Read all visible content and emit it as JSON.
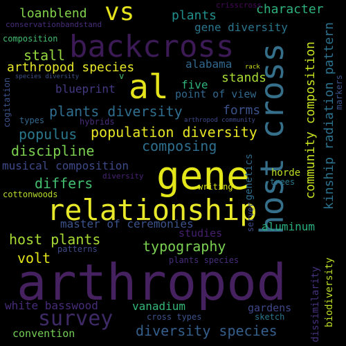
{
  "words": [
    {
      "id": "arthropod",
      "text": "arthropod",
      "color": "#45215f"
    },
    {
      "id": "gene",
      "text": "gene",
      "color": "#e3e71a"
    },
    {
      "id": "relationship",
      "text": "relationship",
      "color": "#e8e82a"
    },
    {
      "id": "host-cross",
      "text": "host cross",
      "color": "#356f8a"
    },
    {
      "id": "backcross",
      "text": "backcross",
      "color": "#3b1a55"
    },
    {
      "id": "al",
      "text": "al",
      "color": "#e5e41c"
    },
    {
      "id": "vs",
      "text": "vs",
      "color": "#e5e41c"
    },
    {
      "id": "survey",
      "text": "survey",
      "color": "#3e2a66"
    },
    {
      "id": "population-diversity",
      "text": "population diversity",
      "color": "#e6e624"
    },
    {
      "id": "diversity-species",
      "text": "diversity species",
      "color": "#355f8c"
    },
    {
      "id": "plants-diversity",
      "text": "plants diversity",
      "color": "#2f6e8e"
    },
    {
      "id": "host-plants",
      "text": "host plants",
      "color": "#a8db34"
    },
    {
      "id": "populus",
      "text": "populus",
      "color": "#2a788e"
    },
    {
      "id": "discipline",
      "text": "discipline",
      "color": "#7cd250"
    },
    {
      "id": "composing",
      "text": "composing",
      "color": "#2e6e8e"
    },
    {
      "id": "typography",
      "text": "typography",
      "color": "#7ad151"
    },
    {
      "id": "differs",
      "text": "differs",
      "color": "#44bf70"
    },
    {
      "id": "arthropod-species",
      "text": "arthropod species",
      "color": "#e8e82a"
    },
    {
      "id": "community-composition",
      "text": "community composition",
      "color": "#c7e020"
    },
    {
      "id": "kinship-radiation-pattern",
      "text": "kinship radiation pattern",
      "color": "#2c728e"
    },
    {
      "id": "loanblend",
      "text": "loanblend",
      "color": "#82d34c"
    },
    {
      "id": "character",
      "text": "character",
      "color": "#2db27d"
    },
    {
      "id": "plants",
      "text": "plants",
      "color": "#21908d"
    },
    {
      "id": "gene-diversity",
      "text": "gene diversity",
      "color": "#2a768e"
    },
    {
      "id": "stall",
      "text": "stall",
      "color": "#95d840"
    },
    {
      "id": "blueprint",
      "text": "blueprint",
      "color": "#443a83"
    },
    {
      "id": "forms",
      "text": "forms",
      "color": "#3b528b"
    },
    {
      "id": "stands",
      "text": "stands",
      "color": "#a8db34"
    },
    {
      "id": "alabama",
      "text": "alabama",
      "color": "#31688e"
    },
    {
      "id": "five",
      "text": "five",
      "color": "#2fb47c"
    },
    {
      "id": "point-of-view",
      "text": "point of view",
      "color": "#31688e"
    },
    {
      "id": "musical-composition",
      "text": "musical composition",
      "color": "#3e4a89"
    },
    {
      "id": "master-of-ceremonies",
      "text": "master of ceremonies",
      "color": "#3b528b"
    },
    {
      "id": "aluminum",
      "text": "aluminum",
      "color": "#29af7f"
    },
    {
      "id": "studies",
      "text": "studies",
      "color": "#481f70"
    },
    {
      "id": "volt",
      "text": "volt",
      "color": "#e3e418"
    },
    {
      "id": "vanadium",
      "text": "vanadium",
      "color": "#35b779"
    },
    {
      "id": "white-basswood",
      "text": "white basswood",
      "color": "#472c7a"
    },
    {
      "id": "convention",
      "text": "convention",
      "color": "#73d056"
    },
    {
      "id": "gardens",
      "text": "gardens",
      "color": "#3f4889"
    },
    {
      "id": "biodiversity",
      "text": "biodiversity",
      "color": "#bddf26"
    },
    {
      "id": "dissimilarity",
      "text": "dissimilarity",
      "color": "#46327e"
    },
    {
      "id": "genetics",
      "text": "genetics",
      "color": "#2e6d8e"
    },
    {
      "id": "server",
      "text": "server",
      "color": "#3e4c8a"
    },
    {
      "id": "horde",
      "text": "horde",
      "color": "#c2df23"
    },
    {
      "id": "trees",
      "text": "trees",
      "color": "#2a788e"
    },
    {
      "id": "writing",
      "text": "writing",
      "color": "#d8e219"
    },
    {
      "id": "cottonwoods",
      "text": "cottonwoods",
      "color": "#b5de2b"
    },
    {
      "id": "crisscross",
      "text": "crisscross",
      "color": "#46085c"
    },
    {
      "id": "conservationbandstand",
      "text": "conservationbandstand",
      "color": "#472d7b"
    },
    {
      "id": "composition",
      "text": "composition",
      "color": "#44bf70"
    },
    {
      "id": "species-diversity",
      "text": "species diversity",
      "color": "#3b528b"
    },
    {
      "id": "v",
      "text": "v",
      "color": "#4ac16d"
    },
    {
      "id": "rack",
      "text": "rack",
      "color": "#d0e11c"
    },
    {
      "id": "cogitation",
      "text": "cogitation",
      "color": "#3b528b"
    },
    {
      "id": "types",
      "text": "types",
      "color": "#31688e"
    },
    {
      "id": "hybrids",
      "text": "hybrids",
      "color": "#472c7a"
    },
    {
      "id": "arthropod-community",
      "text": "arthropod community",
      "color": "#3e4a89"
    },
    {
      "id": "markers",
      "text": "markers",
      "color": "#3b528b"
    },
    {
      "id": "diversity",
      "text": "diversity",
      "color": "#482475"
    },
    {
      "id": "patterns",
      "text": "patterns",
      "color": "#3e4a89"
    },
    {
      "id": "plants-species",
      "text": "plants species",
      "color": "#472d7b"
    },
    {
      "id": "cross-types",
      "text": "cross types",
      "color": "#3b528b"
    },
    {
      "id": "sketch",
      "text": "sketch",
      "color": "#2a788e"
    }
  ]
}
